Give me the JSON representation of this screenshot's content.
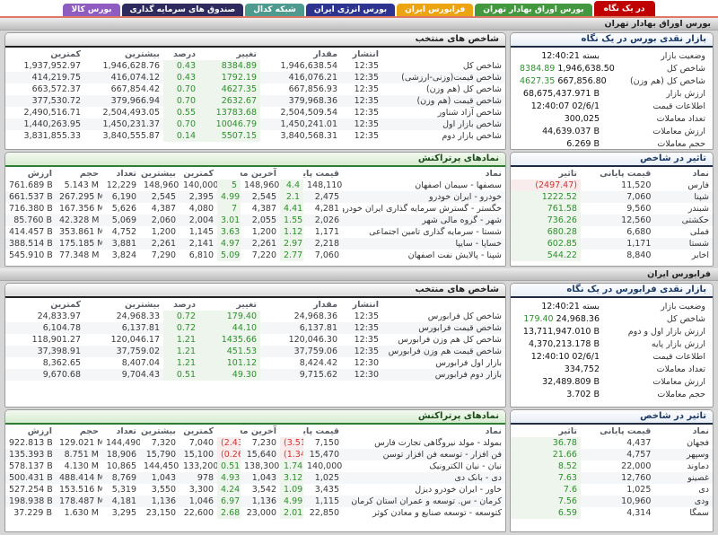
{
  "tabs": [
    {
      "label": "در یک نگاه",
      "color": "#c00000",
      "active": true
    },
    {
      "label": "بورس اوراق بهادار تهران",
      "color": "#43973f",
      "active": false
    },
    {
      "label": "فرابورس ایران",
      "color": "#eca413",
      "active": false
    },
    {
      "label": "بورس انرژی ایران",
      "color": "#2c3490",
      "active": false
    },
    {
      "label": "شبکه کدال",
      "color": "#4e9a8e",
      "active": false
    },
    {
      "label": "صندوق های سرمایه گذاری",
      "color": "#2e2a5e",
      "active": false
    },
    {
      "label": "بورس کالا",
      "color": "#8f5cc0",
      "active": false
    }
  ],
  "sections": [
    {
      "bar_title": "بورس اوراق بهادار تهران",
      "glance": {
        "title": "بازار نقدی بورس در یک نگاه",
        "rows": [
          {
            "label": "وضعیت بازار",
            "value": "بسته 12:40:21"
          },
          {
            "label": "شاخص کل",
            "value": "1,946,638.50",
            "change": "8384.89"
          },
          {
            "label": "شاخص کل (هم وزن)",
            "value": "667,856.80",
            "change": "4627.35"
          },
          {
            "label": "ارزش بازار",
            "value": "68,675,437.971 B"
          },
          {
            "label": "اطلاعات قیمت",
            "value": "12:40:07 02/6/1"
          },
          {
            "label": "تعداد معاملات",
            "value": "300,025"
          },
          {
            "label": "ارزش معاملات",
            "value": "44,639.037 B"
          },
          {
            "label": "حجم معاملات",
            "value": "6.269 B"
          }
        ]
      },
      "indices": {
        "title": "شاخص های منتخب",
        "headers": [
          "",
          "انتشار",
          "مقدار",
          "تغییر",
          "درصد",
          "بیشترین",
          "کمترین"
        ],
        "rows": [
          [
            "شاخص کل",
            "12:35",
            "1,946,638.54",
            "8384.89",
            "0.43",
            "1,946,628.76",
            "1,937,952.97"
          ],
          [
            "شاخص قیمت(وزنی-ارزشی)",
            "12:35",
            "416,076.21",
            "1792.19",
            "0.43",
            "416,074.12",
            "414,219.75"
          ],
          [
            "شاخص کل (هم وزن)",
            "12:35",
            "667,856.93",
            "4627.35",
            "0.70",
            "667,854.42",
            "663,572.37"
          ],
          [
            "شاخص قیمت (هم وزن)",
            "12:35",
            "379,968.36",
            "2632.67",
            "0.70",
            "379,966.94",
            "377,530.72"
          ],
          [
            "شاخص آزاد شناور",
            "12:35",
            "2,504,509.54",
            "13783.68",
            "0.55",
            "2,504,493.05",
            "2,490,516.71"
          ],
          [
            "شاخص بازار اول",
            "12:35",
            "1,450,241.01",
            "10046.79",
            "0.70",
            "1,450,231.37",
            "1,440,263.95"
          ],
          [
            "شاخص بازار دوم",
            "12:35",
            "3,840,568.31",
            "5507.15",
            "0.14",
            "3,840,555.87",
            "3,831,855.33"
          ]
        ]
      },
      "impact": {
        "title": "تاثیر در شاخص",
        "headers": [
          "نماد",
          "قیمت پایانی",
          "تاثیر"
        ],
        "rows": [
          [
            "فارس",
            "11,520",
            "(2497.47)"
          ],
          [
            "شپنا",
            "7,060",
            "1222.52"
          ],
          [
            "شبندر",
            "9,560",
            "761.58"
          ],
          [
            "حکشتی",
            "12,560",
            "736.26"
          ],
          [
            "فملی",
            "6,680",
            "680.28"
          ],
          [
            "شستا",
            "1,171",
            "602.85"
          ],
          [
            "اخابر",
            "8,840",
            "544.22"
          ]
        ]
      },
      "active": {
        "title": "نمادهای پرتراکنش",
        "headers": [
          "نماد",
          "قیمت پایانی",
          "",
          "آخرین معامله",
          "",
          "کمترین",
          "بیشترین",
          "تعداد",
          "حجم",
          "ارزش"
        ],
        "rows": [
          [
            "سصفها - سیمان اصفهان",
            "148,110",
            "4.4",
            "148,960",
            "5",
            "140,000",
            "148,960",
            "12,229",
            "5.143 M",
            "761.689 B"
          ],
          [
            "خودرو - ایران خودرو",
            "2,475",
            "2.1",
            "2,545",
            "4.99",
            "2,395",
            "2,545",
            "6,190",
            "267.295 M",
            "661.537 B"
          ],
          [
            "خگستر - گسترش سرمایه گذاری ایران خودرو",
            "4,281",
            "4.41",
            "4,387",
            "7",
            "4,080",
            "4,387",
            "5,626",
            "167.356 M",
            "716.380 B"
          ],
          [
            "شهر - گروه مالی شهر",
            "2,026",
            "1.55",
            "2,055",
            "3.01",
            "2,004",
            "2,060",
            "5,069",
            "42.328 M",
            "85.760 B"
          ],
          [
            "شستا - سرمایه گذاری تامین اجتماعی",
            "1,171",
            "1.12",
            "1,200",
            "3.63",
            "1,145",
            "1,200",
            "4,752",
            "353.861 M",
            "414.457 B"
          ],
          [
            "خساپا - سایپا",
            "2,218",
            "2.97",
            "2,261",
            "4.97",
            "2,141",
            "2,261",
            "3,881",
            "175.185 M",
            "388.514 B"
          ],
          [
            "شپنا - پالایش نفت اصفهان",
            "7,060",
            "2.77",
            "7,220",
            "5.09",
            "6,810",
            "7,290",
            "3,824",
            "77.348 M",
            "545.910 B"
          ]
        ]
      }
    },
    {
      "bar_title": "فرابورس ایران",
      "glance": {
        "title": "بازار نقدی فرابورس در یک نگاه",
        "rows": [
          {
            "label": "وضعیت بازار",
            "value": "بسته 12:40:21"
          },
          {
            "label": "شاخص کل",
            "value": "24,968.36",
            "change": "179.40"
          },
          {
            "label": "ارزش بازار اول و دوم",
            "value": "13,711,947.010 B"
          },
          {
            "label": "ارزش بازار پایه",
            "value": "4,370,213.178 B"
          },
          {
            "label": "اطلاعات قیمت",
            "value": "12:40:10 02/6/1"
          },
          {
            "label": "تعداد معاملات",
            "value": "334,752"
          },
          {
            "label": "ارزش معاملات",
            "value": "32,489.809 B"
          },
          {
            "label": "حجم معاملات",
            "value": "3.702 B"
          }
        ]
      },
      "indices": {
        "title": "شاخص های منتخب",
        "headers": [
          "",
          "انتشار",
          "مقدار",
          "تغییر",
          "درصد",
          "بیشترین",
          "کمترین"
        ],
        "rows": [
          [
            "شاخص کل فرابورس",
            "12:35",
            "24,968.36",
            "179.40",
            "0.72",
            "24,968.33",
            "24,833.97"
          ],
          [
            "شاخص قیمت فرابورس",
            "12:35",
            "6,137.81",
            "44.10",
            "0.72",
            "6,137.81",
            "6,104.78"
          ],
          [
            "شاخص کل هم وزن فرابورس",
            "12:35",
            "120,046.30",
            "1435.66",
            "1.21",
            "120,046.17",
            "118,901.27"
          ],
          [
            "شاخص قیمت هم وزن فرابورس",
            "12:35",
            "37,759.06",
            "451.53",
            "1.21",
            "37,759.02",
            "37,398.91"
          ],
          [
            "بازار اول فرابورس",
            "12:30",
            "8,424.42",
            "101.12",
            "1.21",
            "8,407.04",
            "8,362.65"
          ],
          [
            "بازار دوم فرابورس",
            "12:30",
            "9,715.62",
            "49.30",
            "0.51",
            "9,704.43",
            "9,670.68"
          ]
        ]
      },
      "impact": {
        "title": "تاثیر در شاخص",
        "headers": [
          "نماد",
          "قیمت پایانی",
          "تاثیر"
        ],
        "rows": [
          [
            "فجهان",
            "4,437",
            "36.78"
          ],
          [
            "وسپهر",
            "4,757",
            "21.66"
          ],
          [
            "دماوند",
            "22,000",
            "8.52"
          ],
          [
            "غصینو",
            "12,760",
            "7.63"
          ],
          [
            "دی",
            "1,025",
            "7.6"
          ],
          [
            "ودی",
            "10,960",
            "7.56"
          ],
          [
            "سمگا",
            "4,314",
            "6.59"
          ]
        ]
      },
      "active": {
        "title": "نمادهای پرتراکنش",
        "headers": [
          "نماد",
          "قیمت پایانی",
          "",
          "آخرین معامله",
          "",
          "کمترین",
          "بیشترین",
          "تعداد",
          "حجم",
          "ارزش"
        ],
        "rows": [
          [
            "بمولد - مولد نیروگاهی تجارت فارس",
            "7,150",
            "(3.51)",
            "7,230",
            "(2.43)",
            "7,040",
            "7,320",
            "144,490",
            "129.021 M",
            "922.813 B"
          ],
          [
            "فن افزار - توسعه فن افزار توسن",
            "15,470",
            "(1.34)",
            "15,640",
            "(0.26)",
            "15,100",
            "15,790",
            "18,906",
            "8.751 M",
            "135.393 B"
          ],
          [
            "نیان - نیان الکترونیک",
            "140,000",
            "1.74",
            "138,300",
            "0.51",
            "133,200",
            "144,450",
            "10,865",
            "4.130 M",
            "578.137 B"
          ],
          [
            "دی - بانک دی",
            "1,025",
            "3.12",
            "1,043",
            "4.93",
            "978",
            "1,043",
            "8,769",
            "488.414 M",
            "500.431 B"
          ],
          [
            "خاور - ایران خودرو دیزل",
            "3,435",
            "1.09",
            "3,542",
            "4.24",
            "3,300",
            "3,550",
            "5,319",
            "153.516 M",
            "527.254 B"
          ],
          [
            "کرمان - س. توسعه و عمران استان کرمان",
            "1,115",
            "4.99",
            "1,136",
            "6.97",
            "1,046",
            "1,136",
            "4,181",
            "178.487 M",
            "198.938 B"
          ],
          [
            "کتوسعه - توسعه صنایع و معادن کوثر",
            "22,850",
            "2.01",
            "23,000",
            "2.68",
            "22,600",
            "23,150",
            "3,295",
            "1.630 M",
            "37.229 B"
          ]
        ]
      }
    }
  ]
}
